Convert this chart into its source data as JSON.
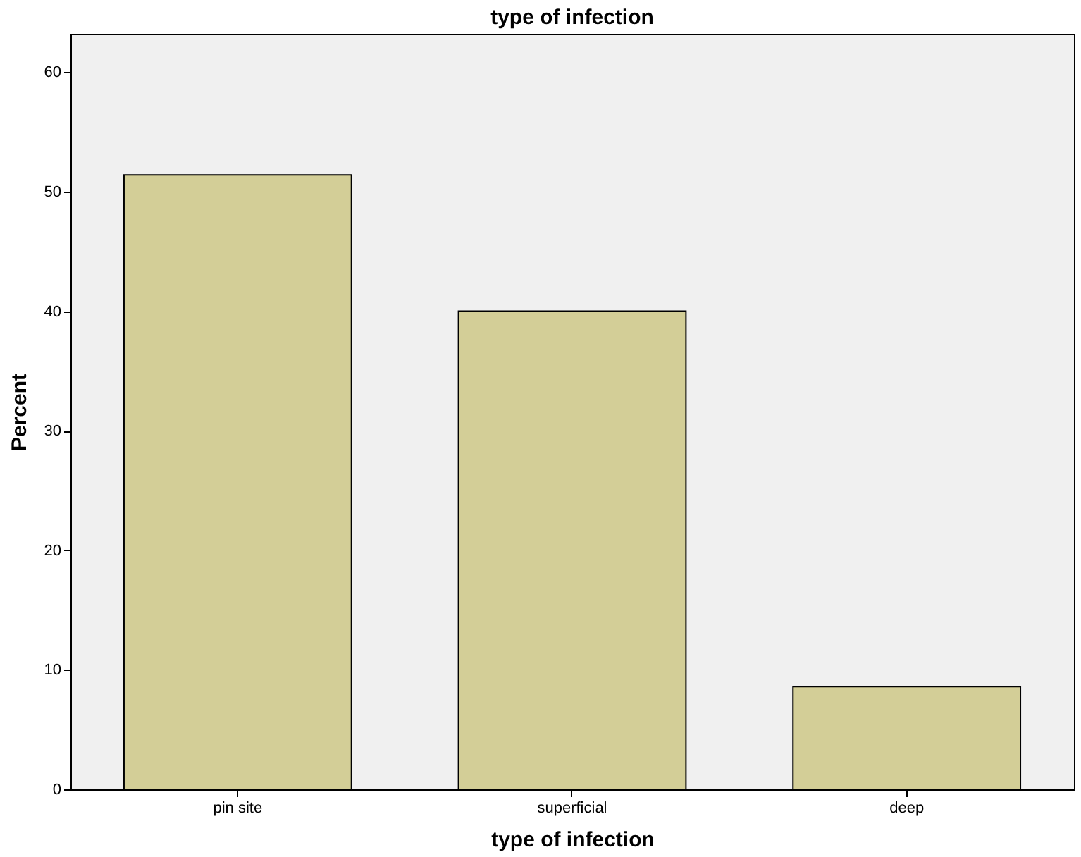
{
  "chart_data": {
    "type": "bar",
    "title": "type of infection",
    "xlabel": "type of infection",
    "ylabel": "Percent",
    "categories": [
      "pin site",
      "superficial",
      "deep"
    ],
    "values": [
      51.4,
      40.0,
      8.6
    ],
    "color": "#d3ce97",
    "ylim": [
      0,
      63.2
    ],
    "yticks": [
      0,
      10,
      20,
      30,
      40,
      50,
      60
    ],
    "grid": false
  }
}
